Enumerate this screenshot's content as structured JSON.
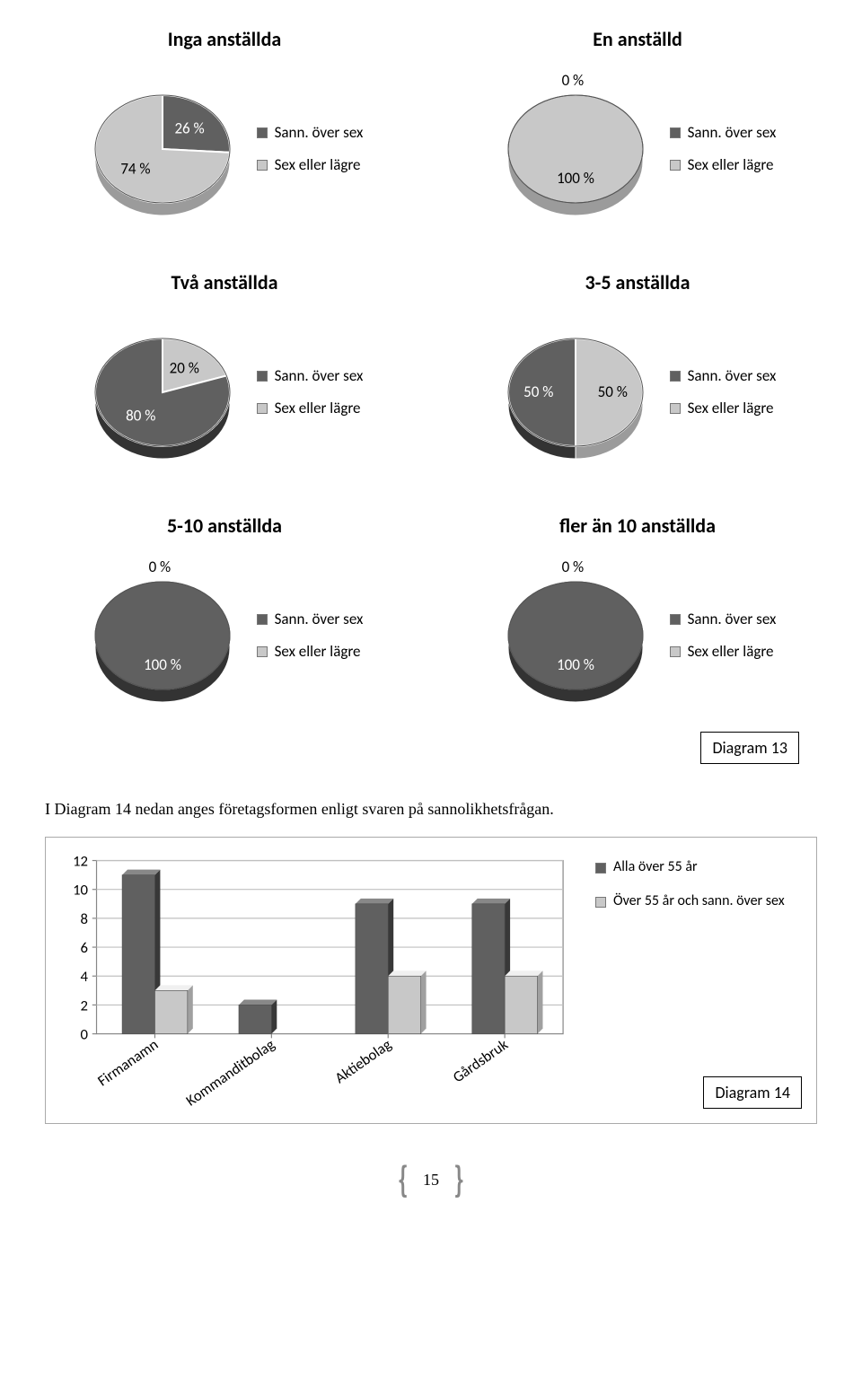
{
  "colors": {
    "slice_dark": "#606060",
    "slice_light": "#c8c8c8",
    "slice_stroke": "#ffffff",
    "axis": "#868686",
    "grid": "#c0c0c0",
    "bar_border": "#4a4a4a"
  },
  "legend_labels": {
    "series1": "Sann. över sex",
    "series2": "Sex eller lägre"
  },
  "pies": [
    {
      "title": "Inga anställda",
      "top_label": null,
      "slices": [
        {
          "label": "26 %",
          "value": 26,
          "color_key": "slice_dark"
        },
        {
          "label": "74 %",
          "value": 74,
          "color_key": "slice_light"
        }
      ]
    },
    {
      "title": "En anställd",
      "top_label": "0 %",
      "slices": [
        {
          "label": null,
          "value": 0,
          "color_key": "slice_dark"
        },
        {
          "label": "100 %",
          "value": 100,
          "color_key": "slice_light"
        }
      ]
    },
    {
      "title": "Två anställda",
      "top_label": null,
      "slices": [
        {
          "label": "20 %",
          "value": 20,
          "color_key": "slice_light"
        },
        {
          "label": "80 %",
          "value": 80,
          "color_key": "slice_dark"
        }
      ]
    },
    {
      "title": "3-5 anställda",
      "top_label": null,
      "slices": [
        {
          "label": "50 %",
          "value": 50,
          "color_key": "slice_light"
        },
        {
          "label": "50 %",
          "value": 50,
          "color_key": "slice_dark"
        }
      ]
    },
    {
      "title": "5-10 anställda",
      "top_label": "0 %",
      "slices": [
        {
          "label": null,
          "value": 0,
          "color_key": "slice_light"
        },
        {
          "label": "100 %",
          "value": 100,
          "color_key": "slice_dark"
        }
      ]
    },
    {
      "title": "fler än 10 anställda",
      "top_label": "0 %",
      "slices": [
        {
          "label": null,
          "value": 0,
          "color_key": "slice_light"
        },
        {
          "label": "100 %",
          "value": 100,
          "color_key": "slice_dark"
        }
      ]
    }
  ],
  "diagram13_caption": "Diagram 13",
  "paragraph": "I Diagram 14 nedan anges företagsformen enligt svaren på sannolikhetsfrågan.",
  "bar_chart": {
    "y_ticks": [
      0,
      2,
      4,
      6,
      8,
      10,
      12
    ],
    "y_max": 12,
    "categories": [
      "Firmanamn",
      "Kommanditbolag",
      "Aktiebolag",
      "Gårdsbruk"
    ],
    "series": [
      {
        "name": "Alla över 55 år",
        "color_key": "slice_dark",
        "values": [
          11,
          2,
          9,
          9
        ]
      },
      {
        "name": "Över 55 år och sann. över sex",
        "color_key": "slice_light",
        "values": [
          3,
          0,
          4,
          4
        ]
      }
    ],
    "caption": "Diagram 14"
  },
  "page_number": "15"
}
